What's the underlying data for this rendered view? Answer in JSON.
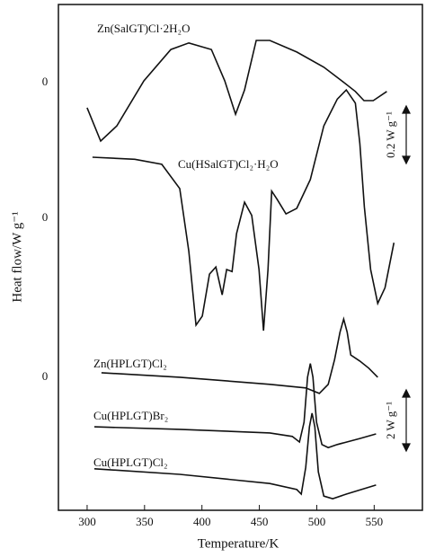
{
  "chart_data": {
    "type": "line",
    "x_label": "Temperature/K",
    "y_label": "Heat flow/W g⁻¹",
    "annotations": [
      "0.2 W g⁻¹",
      "2 W g⁻¹"
    ],
    "xlim": [
      275,
      592
    ],
    "xticks": [
      300,
      350,
      400,
      450,
      500,
      550
    ],
    "ylim": [
      0,
      100
    ],
    "yticks": [
      {
        "value": 84.5,
        "label": "0"
      },
      {
        "value": 57.7,
        "label": "0"
      },
      {
        "value": 26.3,
        "label": "0"
      }
    ],
    "series": [
      {
        "name": "Zn(SalGT)Cl·2H₂O",
        "color": "#111111",
        "x": [
          300,
          311.8,
          325.9,
          349.4,
          372.9,
          388.6,
          408.2,
          419.9,
          429.3,
          437.1,
          447.3,
          459.1,
          482.6,
          506.1,
          521.8,
          533.6,
          541.1,
          549.2,
          561.0
        ],
        "values": [
          79.6,
          73.0,
          76.0,
          84.9,
          91.1,
          92.4,
          91.1,
          84.9,
          78.3,
          83.1,
          92.9,
          92.9,
          90.6,
          87.6,
          84.9,
          82.8,
          81.0,
          81.0,
          82.8
        ]
      },
      {
        "name": "Cu(HSalGT)Cl₂·H₂O",
        "color": "#111111",
        "x": [
          304.7,
          341.5,
          365.0,
          380.7,
          388.6,
          394.8,
          400.3,
          406.6,
          412.1,
          417.6,
          421.5,
          426.2,
          430.1,
          437.1,
          443.4,
          449.7,
          453.6,
          457.5,
          460.7,
          465.4,
          473.2,
          482.6,
          494.4,
          506.1,
          517.9,
          525.7,
          533.6,
          537.5,
          541.4,
          546.9,
          553.1,
          559.4,
          567.2
        ],
        "values": [
          69.8,
          69.4,
          68.4,
          63.6,
          51.2,
          36.6,
          38.4,
          46.7,
          48.1,
          42.6,
          47.6,
          47.2,
          54.7,
          60.9,
          58.3,
          47.6,
          35.5,
          47.6,
          63.1,
          61.5,
          58.6,
          59.7,
          65.4,
          76.0,
          81.3,
          83.1,
          80.5,
          72.5,
          60.0,
          47.6,
          40.9,
          44.0,
          52.9
        ]
      },
      {
        "name": "Zn(HPLGT)Cl₂",
        "color": "#111111",
        "x": [
          312.5,
          380.7,
          459.1,
          490.4,
          502.2,
          510.0,
          515.5,
          520.2,
          523.4,
          526.5,
          529.6,
          537.5,
          545.3,
          553.1
        ],
        "values": [
          27.2,
          26.3,
          24.9,
          24.2,
          23.1,
          24.9,
          29.8,
          35.2,
          37.8,
          35.2,
          30.7,
          29.5,
          28.1,
          26.3
        ]
      },
      {
        "name": "Cu(HPLGT)Br₂",
        "color": "#111111",
        "x": [
          306.3,
          380.7,
          459.1,
          478.7,
          484.9,
          488.9,
          492.0,
          494.4,
          496.7,
          499.8,
          504.5,
          510.0,
          517.9,
          537.5,
          551.6
        ],
        "values": [
          16.5,
          16.0,
          15.3,
          14.6,
          13.5,
          17.4,
          26.3,
          29.0,
          26.3,
          17.4,
          13.0,
          12.4,
          13.0,
          14.2,
          15.1
        ]
      },
      {
        "name": "Cu(HPLGT)Cl₂",
        "color": "#111111",
        "x": [
          306.3,
          380.7,
          459.1,
          482.6,
          486.5,
          490.4,
          493.6,
          495.9,
          498.3,
          501.4,
          506.1,
          513.9,
          525.7,
          551.6
        ],
        "values": [
          8.2,
          7.1,
          5.3,
          4.1,
          3.2,
          8.5,
          16.5,
          19.2,
          16.5,
          7.6,
          2.8,
          2.3,
          3.2,
          5.0
        ]
      }
    ]
  }
}
